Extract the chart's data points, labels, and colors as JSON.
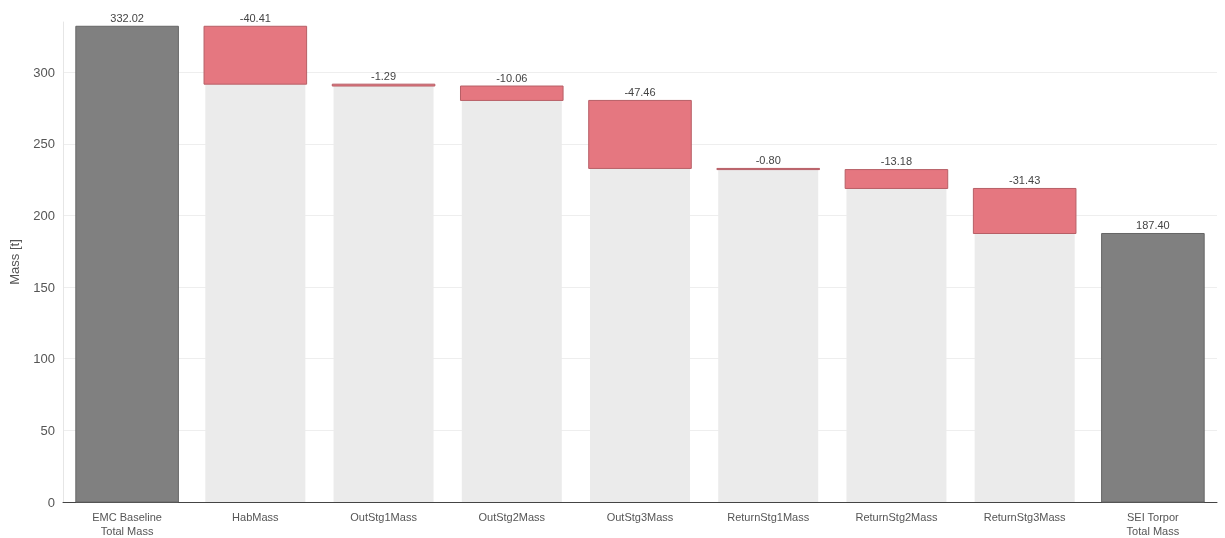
{
  "chart_data": {
    "type": "bar",
    "ylabel": "Mass [t]",
    "categories": [
      "EMC Baseline\nTotal Mass",
      "HabMass",
      "OutStg1Mass",
      "OutStg2Mass",
      "OutStg3Mass",
      "ReturnStg1Mass",
      "ReturnStg2Mass",
      "ReturnStg3Mass",
      "SEI Torpor\nTotal Mass"
    ],
    "series": [
      {
        "color": "#ebebeb",
        "values": [
          null,
          291.6,
          290.3,
          280.3,
          232.8,
          232.0,
          218.8,
          187.4,
          null
        ]
      },
      {
        "colors": [
          "#808080",
          "#e57780",
          "#e57780",
          "#e57780",
          "#e57780",
          "#e57780",
          "#e57780",
          "#e57780",
          "#808080"
        ],
        "values": [
          332.02,
          -40.41,
          -1.29,
          -10.06,
          -47.46,
          -0.8,
          -13.18,
          -31.43,
          187.4
        ],
        "base": [
          0,
          332.02,
          291.61,
          290.32,
          280.26,
          232.8,
          232.0,
          218.82,
          0
        ],
        "value_labels": [
          "332.02",
          "-40.41",
          "-1.29",
          "-10.06",
          "-47.46",
          "-0.80",
          "-13.18",
          "-31.43",
          "187.40"
        ]
      }
    ],
    "ylim": [
      0,
      335
    ],
    "yticks": [
      0,
      50,
      100,
      150,
      200,
      250,
      300
    ],
    "grid": "y"
  }
}
